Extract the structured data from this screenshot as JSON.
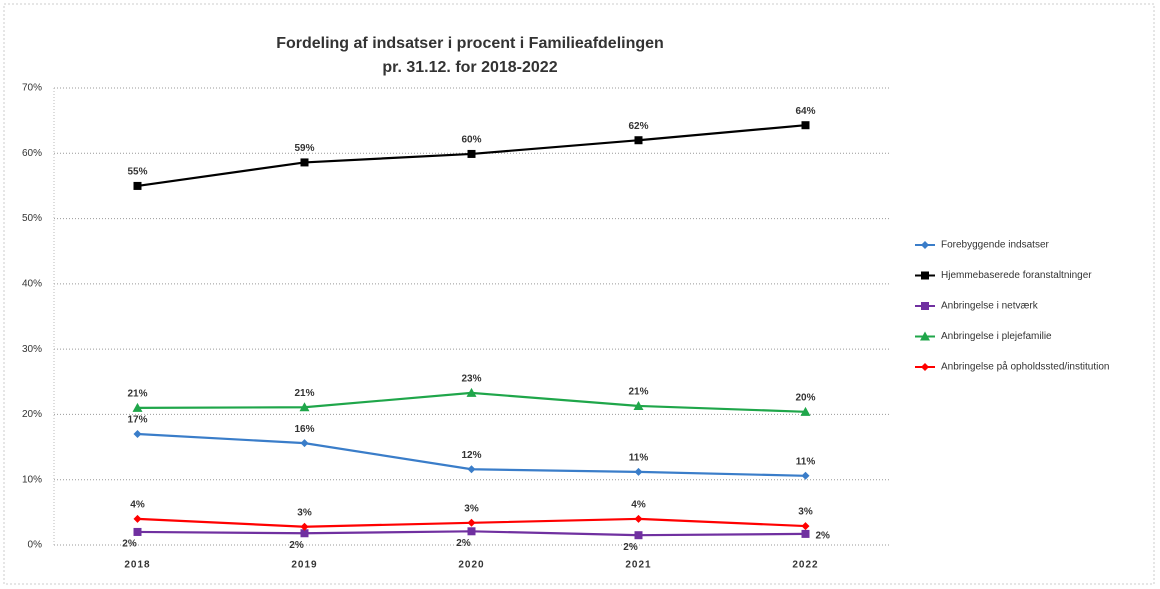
{
  "chart_data": {
    "type": "line",
    "title": [
      "Fordeling af indsatser i procent i Familieafdelingen",
      "pr. 31.12. for 2018-2022"
    ],
    "categories": [
      "2018",
      "2019",
      "2020",
      "2021",
      "2022"
    ],
    "series": [
      {
        "name": "Forebyggende indsatser",
        "color": "#3a7dc9",
        "marker": "diamond",
        "label_position": "above",
        "values": [
          17.0,
          15.6,
          11.6,
          11.2,
          10.6
        ],
        "value_labels": [
          "17%",
          "16%",
          "12%",
          "11%",
          "11%"
        ]
      },
      {
        "name": "Hjemmebaserede foranstaltninger",
        "color": "#000000",
        "marker": "square",
        "label_position": "above",
        "values": [
          55.0,
          58.6,
          59.9,
          62.0,
          64.3
        ],
        "value_labels": [
          "55%",
          "59%",
          "60%",
          "62%",
          "64%"
        ]
      },
      {
        "name": "Anbringelse i netværk",
        "color": "#7030a0",
        "marker": "square",
        "label_position": "below",
        "values": [
          2.0,
          1.8,
          2.1,
          1.5,
          1.7
        ],
        "value_labels": [
          "2%",
          "2%",
          "2%",
          "2%",
          "2%"
        ]
      },
      {
        "name": "Anbringelse i plejefamilie",
        "color": "#1fa64a",
        "marker": "triangle",
        "label_position": "above",
        "values": [
          21.0,
          21.1,
          23.3,
          21.3,
          20.4
        ],
        "value_labels": [
          "21%",
          "21%",
          "23%",
          "21%",
          "20%"
        ]
      },
      {
        "name": "Anbringelse på opholdssted/institution",
        "color": "#ff0000",
        "marker": "diamond",
        "label_position": "above",
        "values": [
          4.0,
          2.8,
          3.4,
          4.0,
          2.9
        ],
        "value_labels": [
          "4%",
          "3%",
          "3%",
          "4%",
          "3%"
        ]
      }
    ],
    "ylim": [
      0,
      70
    ],
    "yticks": [
      {
        "value": 0,
        "label": "0%"
      },
      {
        "value": 10,
        "label": "10%"
      },
      {
        "value": 20,
        "label": "20%"
      },
      {
        "value": 30,
        "label": "30%"
      },
      {
        "value": 40,
        "label": "40%"
      },
      {
        "value": 50,
        "label": "50%"
      },
      {
        "value": 60,
        "label": "60%"
      },
      {
        "value": 70,
        "label": "70%"
      }
    ],
    "grid": true,
    "legend": "right"
  }
}
